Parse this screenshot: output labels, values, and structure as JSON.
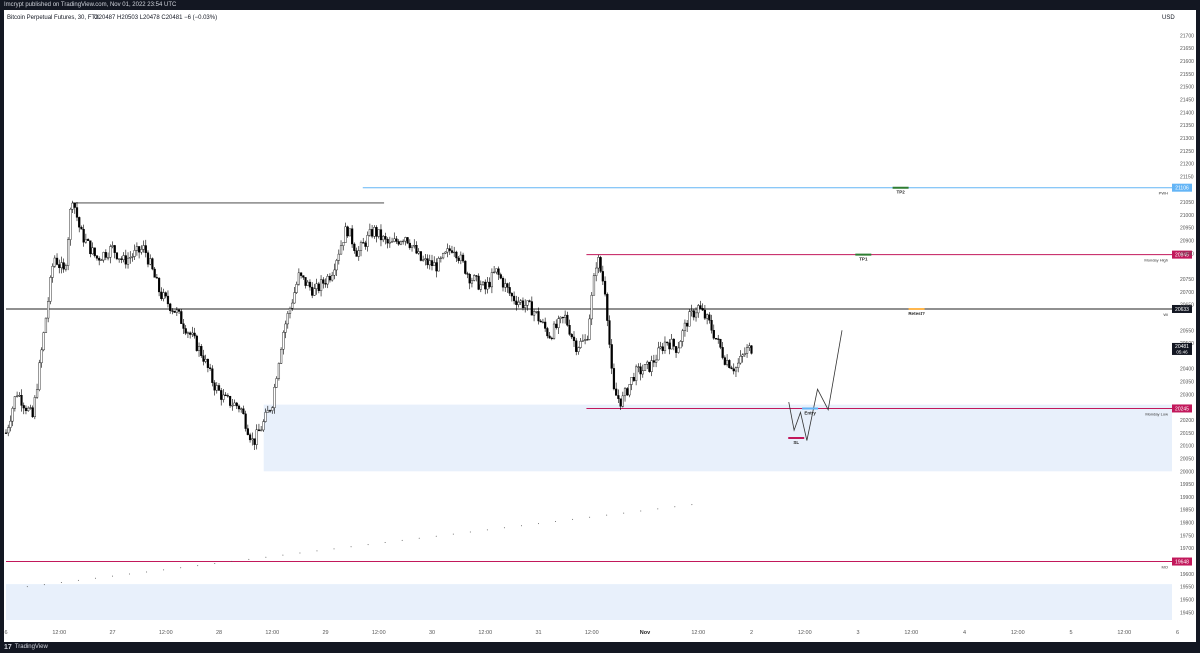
{
  "header": {
    "published": "Imcrypt published on TradingView.com, Nov 01, 2022 23:54 UTC"
  },
  "footer": {
    "logo_text": "TradingView",
    "logo_mark": "17"
  },
  "colors": {
    "red": "#c2185b",
    "blue": "#64b5f6",
    "green": "#2e7d32",
    "orange": "#ffb74d",
    "zone": "#e8f0fb",
    "candle": "#000000"
  },
  "chart_data": {
    "type": "candlestick",
    "title": "Bitcoin Perpetual Futures, 30, FTX",
    "ohlc_label": "O20487 H20503 L20478 C20481 −6 (−0.03%)",
    "currency": "USD",
    "ylim": [
      19420,
      21760
    ],
    "yticks": [
      "21700",
      "21650",
      "21600",
      "21550",
      "21500",
      "21450",
      "21400",
      "21350",
      "21300",
      "21250",
      "21200",
      "21150",
      "21050",
      "21000",
      "20950",
      "20900",
      "20850",
      "20750",
      "20700",
      "20650",
      "20550",
      "20500",
      "20400",
      "20350",
      "20300",
      "20200",
      "20150",
      "20100",
      "20050",
      "20000",
      "19950",
      "19900",
      "19850",
      "19800",
      "19750",
      "19700",
      "19600",
      "19550",
      "19500",
      "19450"
    ],
    "xticks": [
      {
        "label": "6",
        "pos": 0
      },
      {
        "label": "12:00",
        "pos": 0.5
      },
      {
        "label": "27",
        "pos": 1
      },
      {
        "label": "12:00",
        "pos": 1.5
      },
      {
        "label": "28",
        "pos": 2
      },
      {
        "label": "12:00",
        "pos": 2.5
      },
      {
        "label": "29",
        "pos": 3
      },
      {
        "label": "12:00",
        "pos": 3.5
      },
      {
        "label": "30",
        "pos": 4
      },
      {
        "label": "12:00",
        "pos": 4.5
      },
      {
        "label": "31",
        "pos": 5
      },
      {
        "label": "12:00",
        "pos": 5.5
      },
      {
        "label": "Nov",
        "pos": 6
      },
      {
        "label": "12:00",
        "pos": 6.5
      },
      {
        "label": "2",
        "pos": 7
      },
      {
        "label": "12:00",
        "pos": 7.5
      },
      {
        "label": "3",
        "pos": 8
      },
      {
        "label": "12:00",
        "pos": 8.5
      },
      {
        "label": "4",
        "pos": 9
      },
      {
        "label": "12:00",
        "pos": 9.5
      },
      {
        "label": "5",
        "pos": 10
      },
      {
        "label": "12:00",
        "pos": 10.5
      },
      {
        "label": "6",
        "pos": 11
      }
    ],
    "price_path": [
      [
        0.0,
        20150
      ],
      [
        0.1,
        20310
      ],
      [
        0.25,
        20210
      ],
      [
        0.35,
        20520
      ],
      [
        0.45,
        20840
      ],
      [
        0.55,
        20770
      ],
      [
        0.62,
        21080
      ],
      [
        0.7,
        20930
      ],
      [
        0.85,
        20830
      ],
      [
        1.0,
        20870
      ],
      [
        1.1,
        20820
      ],
      [
        1.3,
        20870
      ],
      [
        1.45,
        20690
      ],
      [
        1.6,
        20620
      ],
      [
        1.75,
        20520
      ],
      [
        1.85,
        20450
      ],
      [
        1.95,
        20340
      ],
      [
        2.05,
        20280
      ],
      [
        2.2,
        20250
      ],
      [
        2.32,
        20110
      ],
      [
        2.42,
        20190
      ],
      [
        2.5,
        20270
      ],
      [
        2.6,
        20540
      ],
      [
        2.75,
        20760
      ],
      [
        2.9,
        20700
      ],
      [
        3.05,
        20770
      ],
      [
        3.2,
        20950
      ],
      [
        3.3,
        20850
      ],
      [
        3.45,
        20940
      ],
      [
        3.6,
        20880
      ],
      [
        3.75,
        20920
      ],
      [
        3.9,
        20820
      ],
      [
        4.05,
        20800
      ],
      [
        4.2,
        20880
      ],
      [
        4.35,
        20760
      ],
      [
        4.5,
        20710
      ],
      [
        4.6,
        20780
      ],
      [
        4.75,
        20680
      ],
      [
        4.95,
        20630
      ],
      [
        5.1,
        20530
      ],
      [
        5.25,
        20600
      ],
      [
        5.35,
        20490
      ],
      [
        5.45,
        20510
      ],
      [
        5.55,
        20840
      ],
      [
        5.63,
        20700
      ],
      [
        5.7,
        20310
      ],
      [
        5.78,
        20270
      ],
      [
        5.9,
        20380
      ],
      [
        6.05,
        20410
      ],
      [
        6.2,
        20510
      ],
      [
        6.3,
        20480
      ],
      [
        6.4,
        20590
      ],
      [
        6.5,
        20640
      ],
      [
        6.6,
        20580
      ],
      [
        6.75,
        20440
      ],
      [
        6.85,
        20400
      ],
      [
        6.95,
        20470
      ],
      [
        7.0,
        20481
      ]
    ],
    "projection": [
      [
        7.35,
        20270
      ],
      [
        7.4,
        20160
      ],
      [
        7.46,
        20230
      ],
      [
        7.52,
        20120
      ],
      [
        7.62,
        20320
      ],
      [
        7.72,
        20240
      ],
      [
        7.85,
        20550
      ]
    ],
    "horizontal_levels": [
      {
        "price": 21106,
        "color": "blue",
        "label": "PWH",
        "badge": "21106",
        "x0": 3.35
      },
      {
        "price": 20845,
        "color": "red",
        "label": "Monday High",
        "badge": "20845",
        "x0": 5.45
      },
      {
        "price": 20633,
        "color": "black",
        "label": "Wi",
        "badge": "20633",
        "x0": 0
      },
      {
        "price": 20245,
        "color": "red",
        "label": "Monday Low",
        "badge": "20245",
        "x0": 5.45
      },
      {
        "price": 19648,
        "color": "red",
        "label": "MO",
        "badge": "19648",
        "x0": 0
      }
    ],
    "current_price": {
      "value": "20481",
      "sub": "05:46"
    },
    "annotations": [
      {
        "text": "TP2",
        "price": 21106,
        "pos": 8.4,
        "color": "green"
      },
      {
        "text": "TP1",
        "price": 20845,
        "pos": 8.05,
        "color": "green"
      },
      {
        "text": "Retest?",
        "price": 20633,
        "pos": 8.55,
        "color": "orange"
      },
      {
        "text": "Entry",
        "price": 20245,
        "pos": 7.55,
        "color": "blue"
      },
      {
        "text": "SL",
        "price": 20130,
        "pos": 7.42,
        "color": "red"
      }
    ],
    "demand_zones": [
      {
        "y_top": 20260,
        "y_bottom": 20000,
        "x_start": 2.42
      },
      {
        "y_top": 19560,
        "y_bottom": 19420,
        "x_start": 0
      }
    ],
    "prev_high_marker": {
      "price": 21070,
      "x0": 0.62,
      "x1": 3.55
    }
  }
}
